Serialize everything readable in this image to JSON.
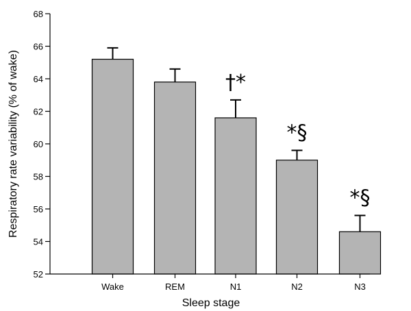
{
  "chart_data": {
    "type": "bar",
    "xlabel": "Sleep stage",
    "ylabel": "Respiratory  rate variability (% of  wake)",
    "categories": [
      "Wake",
      "REM",
      "N1",
      "N2",
      "N3"
    ],
    "values": [
      65.2,
      63.8,
      61.6,
      59.0,
      54.6
    ],
    "errors": [
      0.7,
      0.8,
      1.1,
      0.6,
      1.0
    ],
    "annotations": [
      "",
      "",
      "†*",
      "*§",
      "*§"
    ],
    "ylim": [
      52,
      68
    ],
    "yticks": [
      52,
      54,
      56,
      58,
      60,
      62,
      64,
      66,
      68
    ],
    "grid": false,
    "bar_color": "#b4b4b4"
  }
}
